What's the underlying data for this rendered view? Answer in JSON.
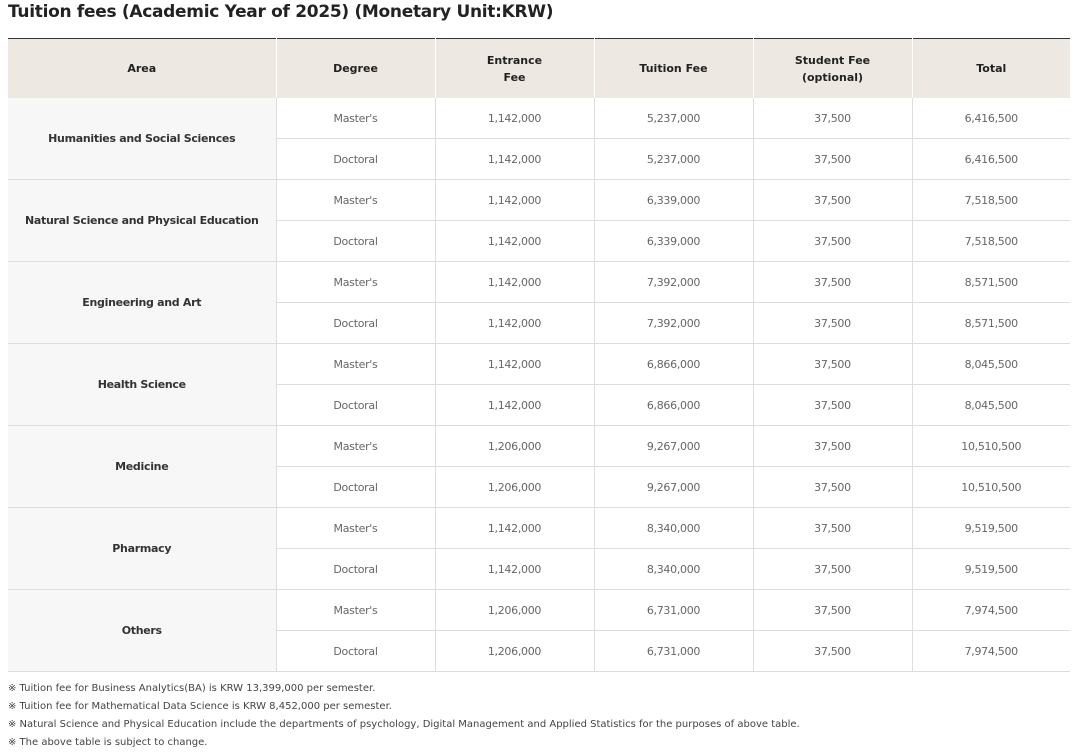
{
  "title": "Tuition fees (Academic Year of 2025) (Monetary Unit:KRW)",
  "table": {
    "headers": [
      "Area",
      "Degree",
      "Entrance Fee",
      "Tuition Fee",
      "Student Fee (optional)",
      "Total"
    ],
    "groups": [
      {
        "area": "Humanities and Social Sciences",
        "rows": [
          [
            "Master's",
            "1,142,000",
            "5,237,000",
            "37,500",
            "6,416,500"
          ],
          [
            "Doctoral",
            "1,142,000",
            "5,237,000",
            "37,500",
            "6,416,500"
          ]
        ]
      },
      {
        "area": "Natural Science and Physical Education",
        "rows": [
          [
            "Master's",
            "1,142,000",
            "6,339,000",
            "37,500",
            "7,518,500"
          ],
          [
            "Doctoral",
            "1,142,000",
            "6,339,000",
            "37,500",
            "7,518,500"
          ]
        ]
      },
      {
        "area": "Engineering and Art",
        "rows": [
          [
            "Master's",
            "1,142,000",
            "7,392,000",
            "37,500",
            "8,571,500"
          ],
          [
            "Doctoral",
            "1,142,000",
            "7,392,000",
            "37,500",
            "8,571,500"
          ]
        ]
      },
      {
        "area": "Health Science",
        "rows": [
          [
            "Master's",
            "1,142,000",
            "6,866,000",
            "37,500",
            "8,045,500"
          ],
          [
            "Doctoral",
            "1,142,000",
            "6,866,000",
            "37,500",
            "8,045,500"
          ]
        ]
      },
      {
        "area": "Medicine",
        "rows": [
          [
            "Master's",
            "1,206,000",
            "9,267,000",
            "37,500",
            "10,510,500"
          ],
          [
            "Doctoral",
            "1,206,000",
            "9,267,000",
            "37,500",
            "10,510,500"
          ]
        ]
      },
      {
        "area": "Pharmacy",
        "rows": [
          [
            "Master's",
            "1,142,000",
            "8,340,000",
            "37,500",
            "9,519,500"
          ],
          [
            "Doctoral",
            "1,142,000",
            "8,340,000",
            "37,500",
            "9,519,500"
          ]
        ]
      },
      {
        "area": "Others",
        "rows": [
          [
            "Master's",
            "1,206,000",
            "6,731,000",
            "37,500",
            "7,974,500"
          ],
          [
            "Doctoral",
            "1,206,000",
            "6,731,000",
            "37,500",
            "7,974,500"
          ]
        ]
      }
    ]
  },
  "notes": [
    "※ Tuition fee for Business Analytics(BA) is KRW 13,399,000 per semester.",
    "※ Tuition fee for Mathematical Data Science is KRW 8,452,000 per semester.",
    "※ Natural Science and Physical Education include the departments of psychology, Digital Management and Applied Statistics for the purposes of above table.",
    "※ The above table is subject to change."
  ]
}
